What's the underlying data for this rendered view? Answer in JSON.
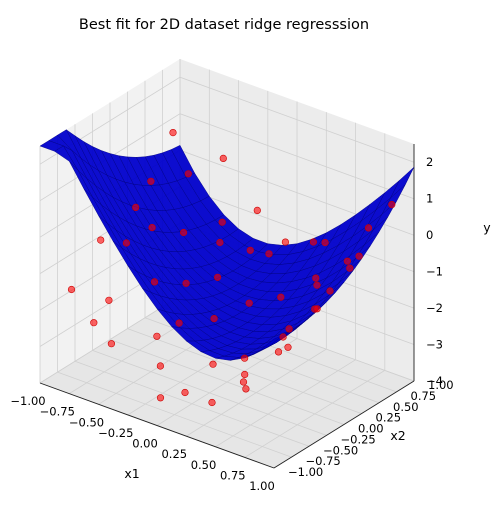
{
  "chart_data": {
    "type": "scatter",
    "title": "Best fit for 2D dataset ridge regresssion",
    "xlabel": "x1",
    "ylabel": "x2",
    "zlabel": "y",
    "x_ticks": [
      "−1.00",
      "−0.75",
      "−0.50",
      "−0.25",
      "0.00",
      "0.25",
      "0.50",
      "0.75",
      "1.00"
    ],
    "y_ticks": [
      "−1.00",
      "−0.75",
      "−0.50",
      "−0.25",
      "0.00",
      "0.25",
      "0.50",
      "0.75",
      "1.00"
    ],
    "z_ticks": [
      "−4",
      "−3",
      "−2",
      "−1",
      "0",
      "1",
      "2"
    ],
    "xlim": [
      -1,
      1
    ],
    "ylim": [
      -1,
      1
    ],
    "zlim": [
      -4,
      2.5
    ],
    "grid": true,
    "series": [
      {
        "kind": "surface",
        "color": "#0000cc",
        "edge_color": "#000080"
      },
      {
        "kind": "scatter",
        "color": "#ff0000"
      }
    ],
    "sample_points": [
      [
        -1.0,
        0.9,
        0.6
      ],
      [
        -0.95,
        0.5,
        -0.2
      ],
      [
        -0.9,
        -0.3,
        -0.8
      ],
      [
        -0.85,
        -0.8,
        -1.5
      ],
      [
        -0.75,
        0.7,
        0.0
      ],
      [
        -0.7,
        0.1,
        -0.7
      ],
      [
        -0.65,
        -0.6,
        -1.8
      ],
      [
        -0.6,
        0.95,
        0.3
      ],
      [
        -0.55,
        0.3,
        -0.9
      ],
      [
        -0.5,
        -0.2,
        -1.6
      ],
      [
        -0.45,
        -0.9,
        -2.4
      ],
      [
        -0.4,
        0.6,
        -0.8
      ],
      [
        -0.35,
        0.0,
        -1.7
      ],
      [
        -0.3,
        -0.5,
        -2.5
      ],
      [
        -0.25,
        0.85,
        -0.6
      ],
      [
        -0.2,
        0.2,
        -1.6
      ],
      [
        -0.15,
        -0.7,
        -2.9
      ],
      [
        -0.1,
        0.5,
        -1.1
      ],
      [
        -0.05,
        -0.1,
        -2.2
      ],
      [
        0.0,
        -0.95,
        -3.3
      ],
      [
        0.05,
        0.75,
        -1.0
      ],
      [
        0.1,
        0.15,
        -1.9
      ],
      [
        0.15,
        -0.45,
        -2.8
      ],
      [
        0.2,
        0.9,
        -1.0
      ],
      [
        0.25,
        0.35,
        -1.8
      ],
      [
        0.3,
        -0.25,
        -2.7
      ],
      [
        0.35,
        -0.8,
        -3.2
      ],
      [
        0.4,
        0.6,
        -1.4
      ],
      [
        0.45,
        0.05,
        -2.3
      ],
      [
        0.5,
        -0.6,
        -2.7
      ],
      [
        0.55,
        0.8,
        -1.0
      ],
      [
        0.6,
        0.25,
        -1.6
      ],
      [
        0.65,
        -0.35,
        -2.0
      ],
      [
        0.7,
        -0.9,
        -2.3
      ],
      [
        0.75,
        0.5,
        -0.6
      ],
      [
        0.8,
        -0.05,
        -1.0
      ],
      [
        0.85,
        -0.55,
        -1.4
      ],
      [
        0.9,
        0.85,
        0.9
      ],
      [
        0.95,
        0.3,
        0.2
      ],
      [
        1.0,
        -0.2,
        -0.1
      ],
      [
        -0.9,
        0.2,
        -0.5
      ],
      [
        -0.6,
        -0.9,
        -2.0
      ],
      [
        -0.3,
        0.4,
        -1.0
      ],
      [
        0.0,
        0.6,
        -1.2
      ],
      [
        0.3,
        0.9,
        -0.9
      ],
      [
        0.6,
        -0.75,
        -2.2
      ],
      [
        0.85,
        0.6,
        0.5
      ],
      [
        -0.8,
        -0.1,
        -1.0
      ],
      [
        -0.2,
        -0.35,
        -2.2
      ],
      [
        0.15,
        -0.85,
        -3.1
      ],
      [
        0.5,
        0.45,
        -1.3
      ],
      [
        0.95,
        -0.7,
        -0.6
      ]
    ]
  }
}
